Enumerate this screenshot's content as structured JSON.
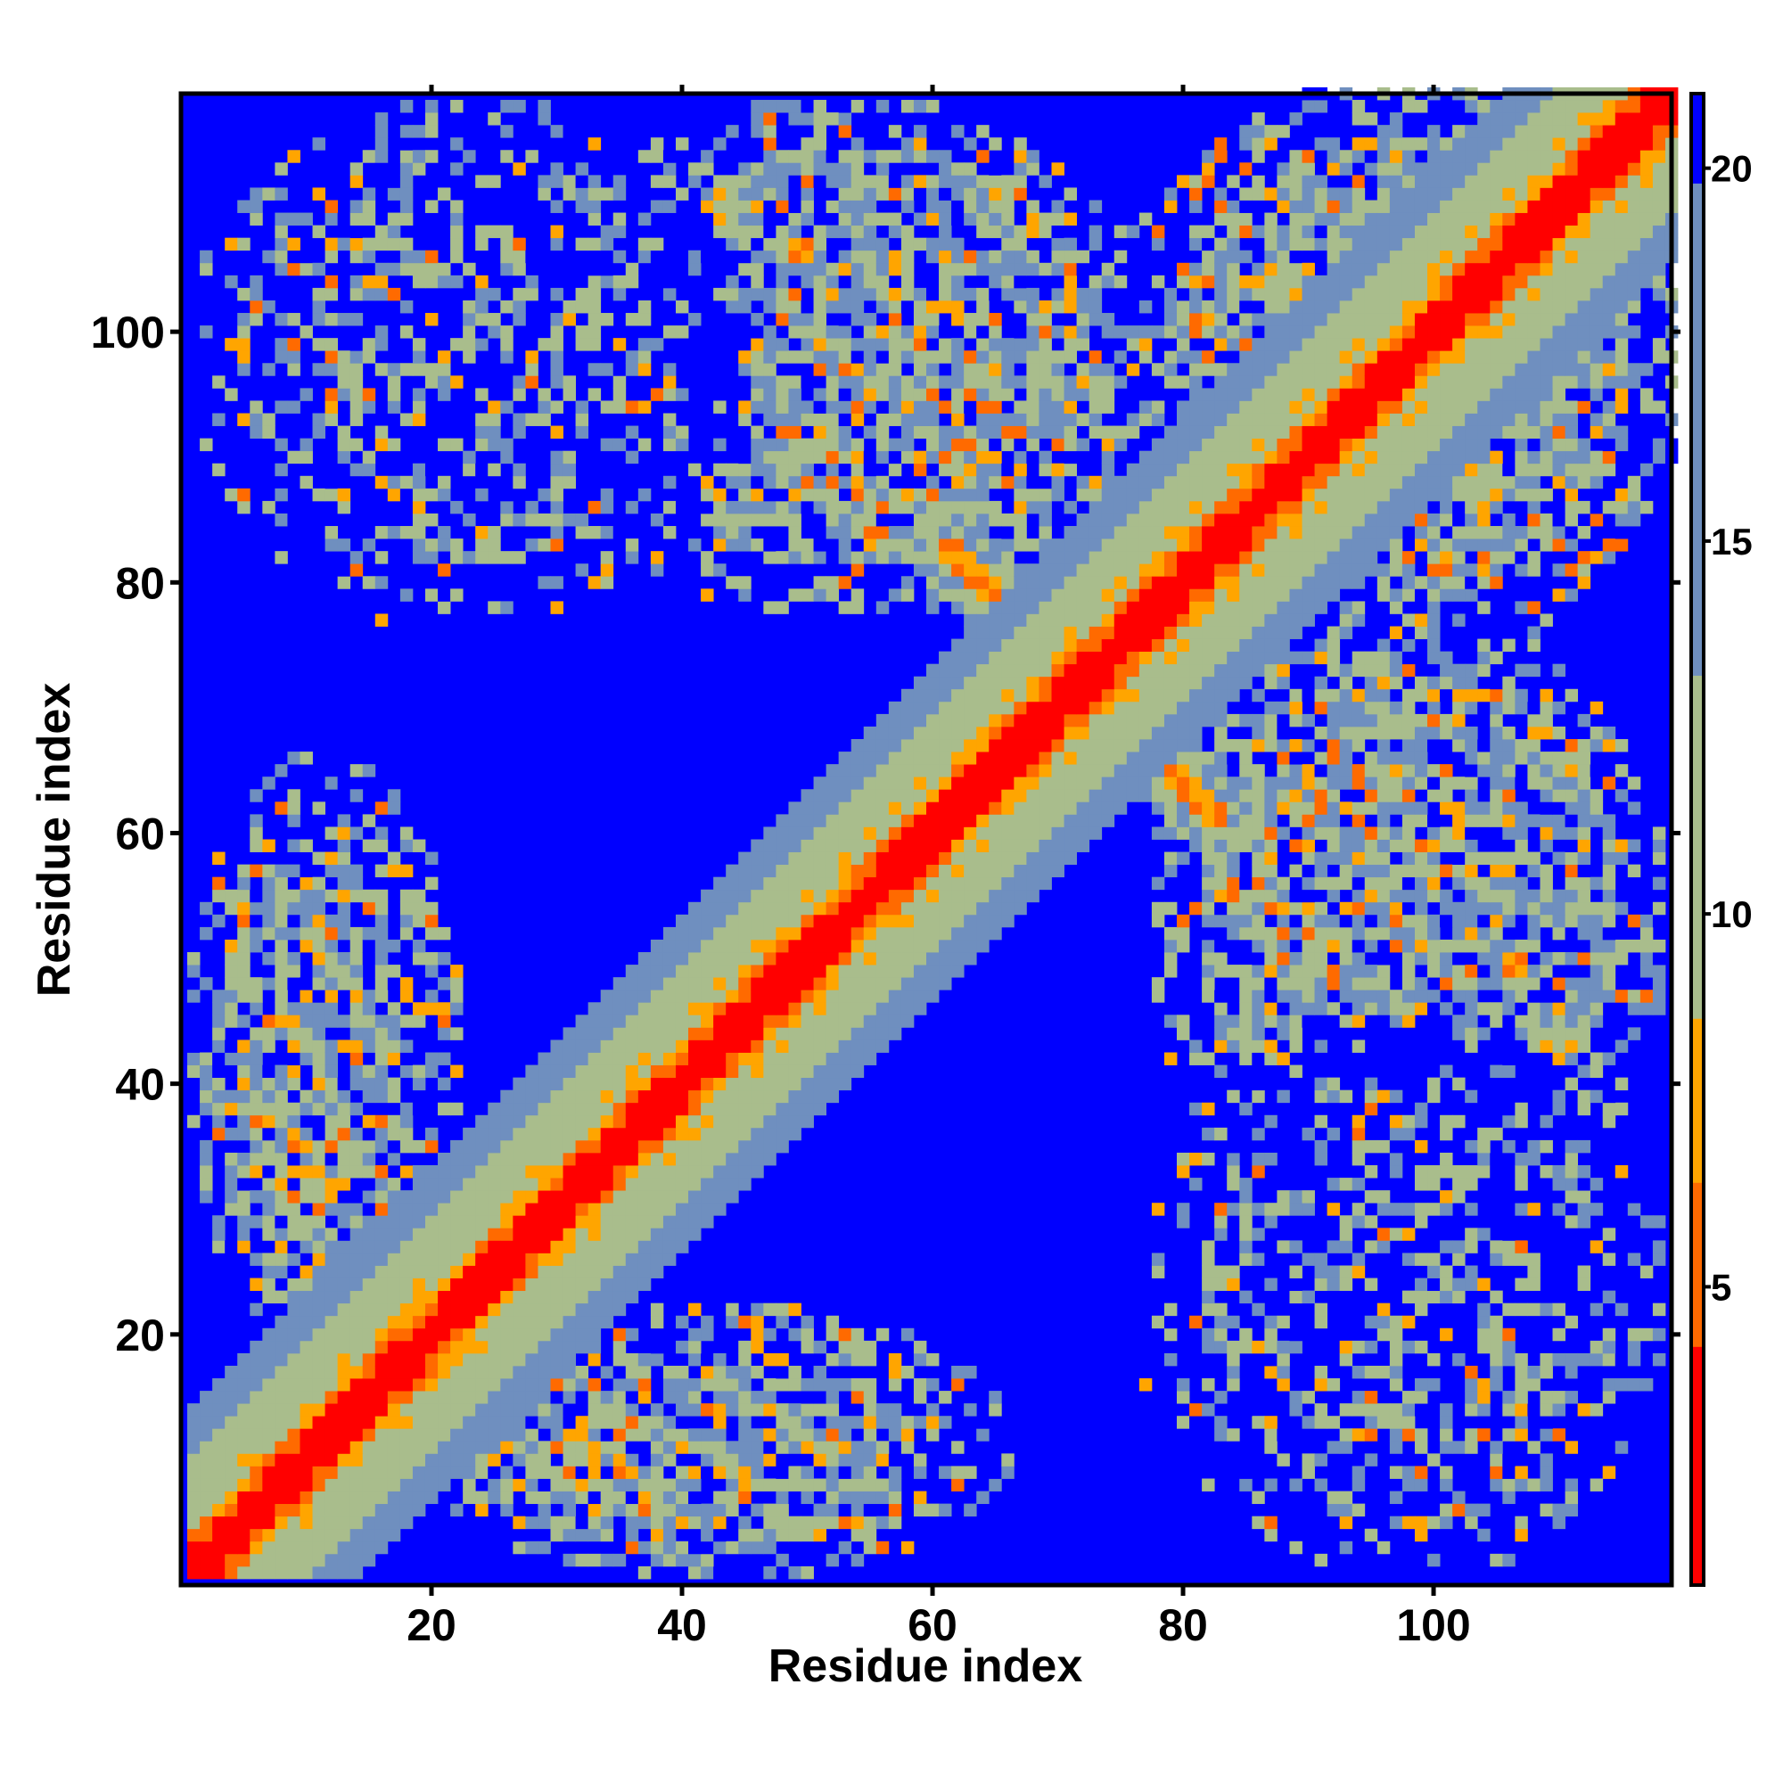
{
  "chart_data": {
    "type": "heatmap",
    "title": "",
    "xlabel": "Residue index",
    "ylabel": "Residue index",
    "xlim": [
      1,
      119
    ],
    "ylim": [
      1,
      119
    ],
    "n_residues": 119,
    "x_ticks": [
      20,
      40,
      60,
      80,
      100
    ],
    "y_ticks": [
      20,
      40,
      60,
      80,
      100
    ],
    "colorbar": {
      "ticks": [
        5,
        10,
        15,
        20
      ],
      "range": [
        1,
        21
      ],
      "colors": {
        "contact": "#ff0000",
        "near": "#ff6a00",
        "mid": "#ffa500",
        "pale": "#a9bd8c",
        "steel": "#6f8fbf",
        "far": "#0000ff"
      }
    },
    "structure": {
      "description_segments": [
        [
          1,
          21
        ],
        [
          22,
          60
        ],
        [
          61,
          74
        ],
        [
          75,
          119
        ]
      ],
      "clusters": [
        {
          "x": [
            5,
            33
          ],
          "y": [
            77,
            103
          ],
          "level": "sparse"
        },
        {
          "x": [
            30,
            70
          ],
          "y": [
            78,
            118
          ],
          "level": "medium"
        },
        {
          "x": [
            1,
            22
          ],
          "y": [
            22,
            66
          ],
          "level": "medium"
        },
        {
          "x": [
            20,
            62
          ],
          "y": [
            1,
            20
          ],
          "level": "medium"
        },
        {
          "x": [
            78,
            118
          ],
          "y": [
            30,
            78
          ],
          "level": "medium"
        },
        {
          "x": [
            78,
            118
          ],
          "y": [
            1,
            45
          ],
          "level": "sparse"
        },
        {
          "x": [
            75,
            119
          ],
          "y": [
            78,
            119
          ],
          "level": "medium"
        }
      ]
    }
  }
}
